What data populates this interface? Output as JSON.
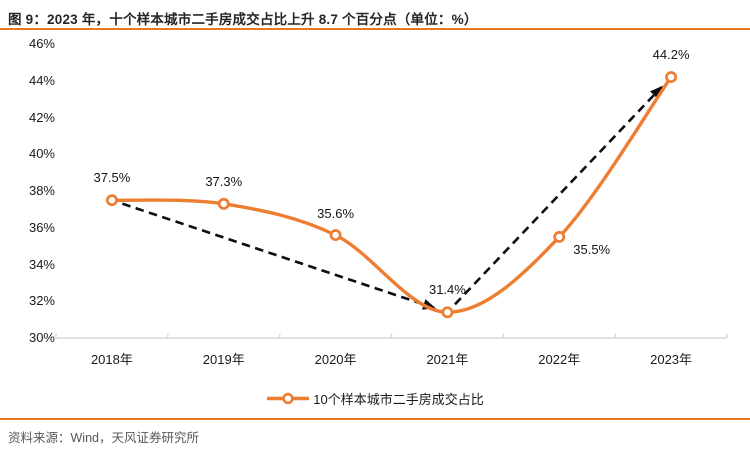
{
  "title": "图 9：2023 年，十个样本城市二手房成交占比上升 8.7 个百分点（单位：%）",
  "source_note": "资料来源：Wind，天风证券研究所",
  "legend": {
    "label": "10个样本城市二手房成交占比"
  },
  "colors": {
    "accent_orange": "#ED7D31",
    "rule_orange": "#E87722",
    "axis_gray": "#D9D9D9",
    "arrow_black": "#0D0D0D",
    "label_dark": "#141414"
  },
  "chart_data": {
    "type": "line",
    "title": "图 9：2023 年，十个样本城市二手房成交占比上升 8.7 个百分点（单位：%）",
    "categories": [
      "2018年",
      "2019年",
      "2020年",
      "2021年",
      "2022年",
      "2023年"
    ],
    "series": [
      {
        "name": "10个样本城市二手房成交占比",
        "values": [
          37.5,
          37.3,
          35.6,
          31.4,
          35.5,
          44.2
        ]
      }
    ],
    "data_labels": [
      "37.5%",
      "37.3%",
      "35.6%",
      "31.4%",
      "35.5%",
      "44.2%"
    ],
    "y_ticks": [
      "46%",
      "44%",
      "42%",
      "40%",
      "38%",
      "36%",
      "34%",
      "32%",
      "30%"
    ],
    "ylim": [
      30,
      46
    ],
    "y_tick_step": 2,
    "grid": false,
    "smooth": true,
    "marker": "open-circle",
    "legend_position": "bottom-center",
    "annotations": [
      {
        "type": "dashed-arrow",
        "from": "2018年",
        "to": "2021年"
      },
      {
        "type": "dashed-arrow",
        "from": "2021年",
        "to": "2023年"
      }
    ]
  }
}
